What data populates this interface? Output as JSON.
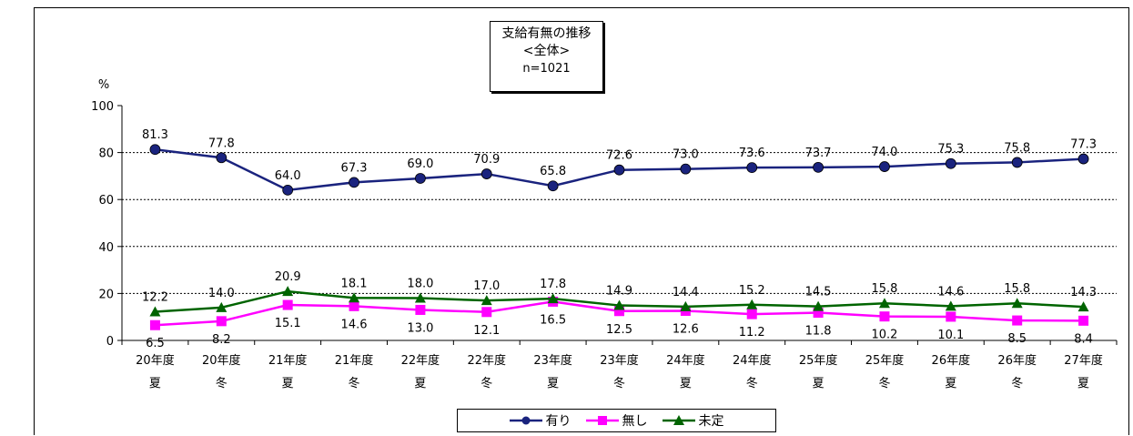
{
  "chart_data": {
    "type": "line",
    "title": "支給有無の推移",
    "subtitle": "<全体>",
    "note": "n=1021",
    "ylabel": "%",
    "ylim": [
      0,
      100
    ],
    "yticks": [
      0,
      20,
      40,
      60,
      80,
      100
    ],
    "grid": "horizontal dashed at 20, 40, 60, 80",
    "categories": [
      [
        "20年度",
        "夏"
      ],
      [
        "20年度",
        "冬"
      ],
      [
        "21年度",
        "夏"
      ],
      [
        "21年度",
        "冬"
      ],
      [
        "22年度",
        "夏"
      ],
      [
        "22年度",
        "冬"
      ],
      [
        "23年度",
        "夏"
      ],
      [
        "23年度",
        "冬"
      ],
      [
        "24年度",
        "夏"
      ],
      [
        "24年度",
        "冬"
      ],
      [
        "25年度",
        "夏"
      ],
      [
        "25年度",
        "冬"
      ],
      [
        "26年度",
        "夏"
      ],
      [
        "26年度",
        "冬"
      ],
      [
        "27年度",
        "夏"
      ]
    ],
    "series": [
      {
        "name": "有り",
        "color": "#1a237e",
        "marker": "circle",
        "values": [
          81.3,
          77.8,
          64.0,
          67.3,
          69.0,
          70.9,
          65.8,
          72.6,
          73.0,
          73.6,
          73.7,
          74.0,
          75.3,
          75.8,
          77.3
        ],
        "labels": [
          "81.3",
          "77.8",
          "64.0",
          "67.3",
          "69.0",
          "70.9",
          "65.8",
          "72.6",
          "73.0",
          "73.6",
          "73.7",
          "74.0",
          "75.3",
          "75.8",
          "77.3"
        ],
        "label_pos": "above"
      },
      {
        "name": "無し",
        "color": "#ff00ff",
        "marker": "square",
        "values": [
          6.5,
          8.2,
          15.1,
          14.6,
          13.0,
          12.1,
          16.5,
          12.5,
          12.6,
          11.2,
          11.8,
          10.2,
          10.1,
          8.5,
          8.4
        ],
        "labels": [
          "6.5",
          "8.2",
          "15.1",
          "14.6",
          "13.0",
          "12.1",
          "16.5",
          "12.5",
          "12.6",
          "11.2",
          "11.8",
          "10.2",
          "10.1",
          "8.5",
          "8.4"
        ],
        "label_pos": "below"
      },
      {
        "name": "未定",
        "color": "#006400",
        "marker": "triangle",
        "values": [
          12.2,
          14.0,
          20.9,
          18.1,
          18.0,
          17.0,
          17.8,
          14.9,
          14.4,
          15.2,
          14.5,
          15.8,
          14.6,
          15.8,
          14.3
        ],
        "labels": [
          "12.2",
          "14.0",
          "20.9",
          "18.1",
          "18.0",
          "17.0",
          "17.8",
          "14.9",
          "14.4",
          "15.2",
          "14.5",
          "15.8",
          "14.6",
          "15.8",
          "14.3"
        ],
        "label_pos": "above"
      }
    ],
    "legend": "bottom-center"
  }
}
